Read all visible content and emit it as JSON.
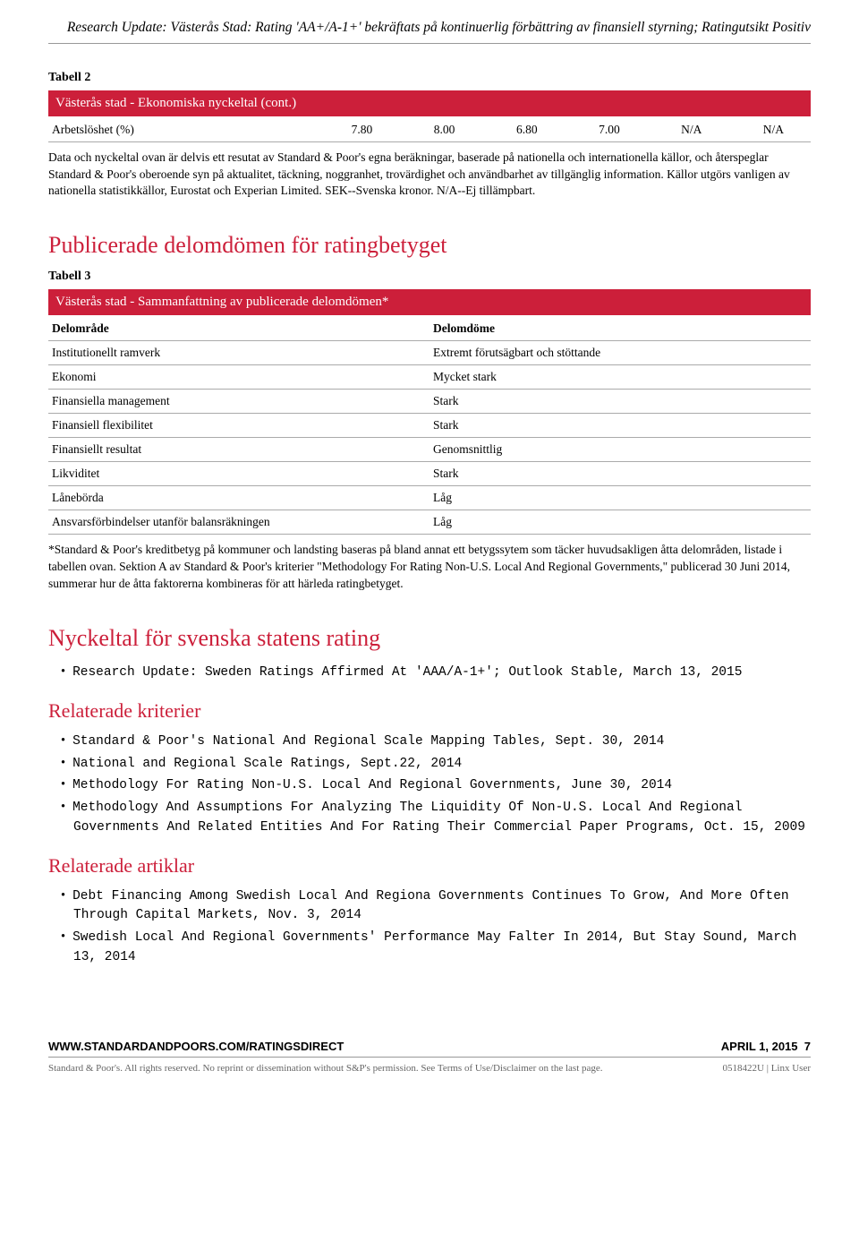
{
  "header": {
    "title": "Research Update: Västerås Stad: Rating 'AA+/A-1+' bekräftats på kontinuerlig förbättring av finansiell styrning; Ratingutsikt Positiv"
  },
  "table2": {
    "label": "Tabell 2",
    "title": "Västerås stad - Ekonomiska nyckeltal (cont.)",
    "row_label": "Arbetslöshet (%)",
    "cells": [
      "7.80",
      "8.00",
      "6.80",
      "7.00",
      "N/A",
      "N/A"
    ],
    "footnote": "Data och nyckeltal ovan är delvis ett resutat av Standard & Poor's egna beräkningar, baserade på nationella och internationella källor, och återspeglar Standard & Poor's oberoende syn på aktualitet, täckning, noggranhet, trovärdighet och användbarhet av tillgänglig information. Källor utgörs vanligen av nationella statistikkällor, Eurostat och Experian Limited. SEK--Svenska kronor. N/A--Ej tillämpbart."
  },
  "section1": {
    "heading": "Publicerade delomdömen för ratingbetyget"
  },
  "table3": {
    "label": "Tabell 3",
    "title": "Västerås stad - Sammanfattning av publicerade delomdömen*",
    "col1": "Delområde",
    "col2": "Delomdöme",
    "rows": [
      [
        "Institutionellt ramverk",
        "Extremt förutsägbart och stöttande"
      ],
      [
        "Ekonomi",
        "Mycket stark"
      ],
      [
        "Finansiella management",
        "Stark"
      ],
      [
        "Finansiell flexibilitet",
        "Stark"
      ],
      [
        "Finansiellt resultat",
        "Genomsnittlig"
      ],
      [
        "Likviditet",
        "Stark"
      ],
      [
        "Lånebörda",
        "Låg"
      ],
      [
        "Ansvarsförbindelser utanför balansräkningen",
        "Låg"
      ]
    ],
    "footnote": "*Standard & Poor's kreditbetyg på kommuner och landsting baseras på bland annat ett betygssytem som täcker huvudsakligen åtta delområden, listade i tabellen ovan. Sektion A av Standard & Poor's kriterier \"Methodology For Rating Non-U.S. Local And Regional Governments,\" publicerad 30 Juni 2014, summerar hur de åtta faktorerna kombineras för att härleda ratingbetyget."
  },
  "section2": {
    "heading": "Nyckeltal för svenska statens rating",
    "items": [
      "Research Update: Sweden Ratings Affirmed At 'AAA/A-1+'; Outlook Stable, March 13, 2015"
    ]
  },
  "section3": {
    "heading": "Relaterade kriterier",
    "items": [
      "Standard & Poor's National And Regional Scale Mapping Tables, Sept. 30, 2014",
      "National and Regional Scale Ratings, Sept.22, 2014",
      "Methodology For Rating Non-U.S. Local And Regional Governments, June 30, 2014",
      "Methodology And Assumptions For Analyzing The Liquidity Of Non-U.S. Local And Regional Governments And Related Entities And For Rating Their Commercial Paper Programs, Oct. 15, 2009"
    ]
  },
  "section4": {
    "heading": "Relaterade artiklar",
    "items": [
      "Debt Financing Among Swedish Local And Regiona Governments Continues To Grow, And More Often Through Capital Markets, Nov. 3, 2014",
      "Swedish Local And Regional Governments' Performance May Falter In 2014, But Stay Sound, March 13, 2014"
    ]
  },
  "footer": {
    "url": "WWW.STANDARDANDPOORS.COM/RATINGSDIRECT",
    "date": "APRIL 1, 2015",
    "page": "7",
    "disclaimer": "Standard & Poor's. All rights reserved. No reprint or dissemination without S&P's permission. See Terms of Use/Disclaimer on the last page.",
    "code": "0518422U | Linx User"
  }
}
